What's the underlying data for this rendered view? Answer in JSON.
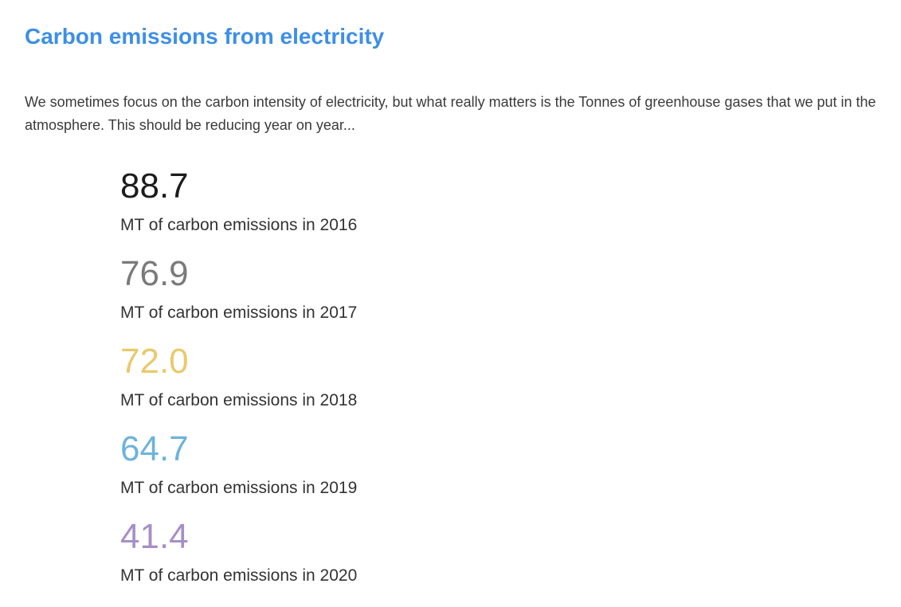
{
  "header": {
    "title": "Carbon emissions from electricity"
  },
  "intro": "We sometimes focus on the carbon intensity of electricity, but what really matters is the Tonnes of greenhouse gases that we put in the atmosphere. This should be reducing year on year...",
  "stats": [
    {
      "value": "88.7",
      "label": "MT of carbon emissions in 2016",
      "color": "#1c1c1c"
    },
    {
      "value": "76.9",
      "label": "MT of carbon emissions in 2017",
      "color": "#7a7a7a"
    },
    {
      "value": "72.0",
      "label": "MT of carbon emissions in 2018",
      "color": "#e9c96b"
    },
    {
      "value": "64.7",
      "label": "MT of carbon emissions in 2019",
      "color": "#6db3dc"
    },
    {
      "value": "41.4",
      "label": "MT of carbon emissions in 2020",
      "color": "#a68fc6"
    }
  ]
}
